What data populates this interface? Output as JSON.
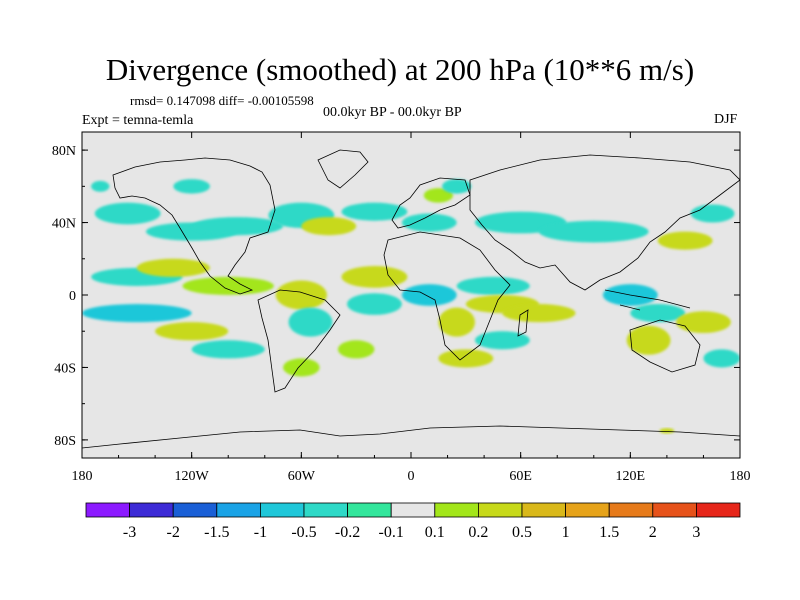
{
  "chart_data": {
    "type": "heatmap",
    "title": "Divergence (smoothed) at 200 hPa (10**6 m/s)",
    "stats_text": "rmsd= 0.147098 diff= -0.00105598",
    "period_text": "00.0kyr BP - 00.0kyr BP",
    "experiment_text": "Expt = temna-temla",
    "season_text": "DJF",
    "x_axis": {
      "range": [
        -180,
        180
      ],
      "ticks": [
        -180,
        -120,
        -60,
        0,
        60,
        120,
        180
      ],
      "tick_labels": [
        "180",
        "120W",
        "60W",
        "0",
        "60E",
        "120E",
        "180"
      ]
    },
    "y_axis": {
      "range": [
        -90,
        90
      ],
      "ticks": [
        80,
        40,
        0,
        -40,
        -80
      ],
      "tick_labels": [
        "80N",
        "40N",
        "0",
        "40S",
        "80S"
      ]
    },
    "colorbar": {
      "colors": [
        "#8c1aff",
        "#3d2bd6",
        "#1a5fd6",
        "#1aa3e6",
        "#1fc7d9",
        "#2ed9c7",
        "#33e69c",
        "#e6e6e6",
        "#a3e61a",
        "#c7d91a",
        "#d9b81a",
        "#e6a31a",
        "#e67a1a",
        "#e6521a",
        "#e6261a"
      ],
      "boundary_labels": [
        "-3",
        "-2",
        "-1.5",
        "-1",
        "-0.5",
        "-0.2",
        "-0.1",
        "0.1",
        "0.2",
        "0.5",
        "1",
        "1.5",
        "2",
        "3"
      ]
    },
    "field": [
      {
        "lon": -120,
        "lat": 60,
        "w": 10,
        "h": 4,
        "v": -0.4
      },
      {
        "lon": -170,
        "lat": 60,
        "w": 5,
        "h": 3,
        "v": -0.2
      },
      {
        "lon": -155,
        "lat": 45,
        "w": 18,
        "h": 6,
        "v": -0.3
      },
      {
        "lon": -120,
        "lat": 35,
        "w": 25,
        "h": 5,
        "v": -0.3
      },
      {
        "lon": -95,
        "lat": 38,
        "w": 25,
        "h": 5,
        "v": -0.3
      },
      {
        "lon": -60,
        "lat": 44,
        "w": 18,
        "h": 7,
        "v": -0.3
      },
      {
        "lon": -45,
        "lat": 38,
        "w": 15,
        "h": 5,
        "v": 0.5
      },
      {
        "lon": -20,
        "lat": 46,
        "w": 18,
        "h": 5,
        "v": -0.4
      },
      {
        "lon": 10,
        "lat": 40,
        "w": 15,
        "h": 5,
        "v": -0.2
      },
      {
        "lon": 15,
        "lat": 55,
        "w": 8,
        "h": 4,
        "v": 0.2
      },
      {
        "lon": 25,
        "lat": 60,
        "w": 8,
        "h": 4,
        "v": -0.2
      },
      {
        "lon": 60,
        "lat": 40,
        "w": 25,
        "h": 6,
        "v": -0.3
      },
      {
        "lon": 100,
        "lat": 35,
        "w": 30,
        "h": 6,
        "v": -0.4
      },
      {
        "lon": 150,
        "lat": 30,
        "w": 15,
        "h": 5,
        "v": 0.3
      },
      {
        "lon": 165,
        "lat": 45,
        "w": 12,
        "h": 5,
        "v": -0.2
      },
      {
        "lon": -150,
        "lat": 10,
        "w": 25,
        "h": 5,
        "v": -0.3
      },
      {
        "lon": -130,
        "lat": 15,
        "w": 20,
        "h": 5,
        "v": 0.3
      },
      {
        "lon": -100,
        "lat": 5,
        "w": 25,
        "h": 5,
        "v": 0.2
      },
      {
        "lon": -150,
        "lat": -10,
        "w": 30,
        "h": 5,
        "v": -0.5
      },
      {
        "lon": -120,
        "lat": -20,
        "w": 20,
        "h": 5,
        "v": 0.3
      },
      {
        "lon": -100,
        "lat": -30,
        "w": 20,
        "h": 5,
        "v": -0.2
      },
      {
        "lon": -60,
        "lat": 0,
        "w": 14,
        "h": 8,
        "v": 0.3
      },
      {
        "lon": -55,
        "lat": -15,
        "w": 12,
        "h": 8,
        "v": -0.3
      },
      {
        "lon": -20,
        "lat": 10,
        "w": 18,
        "h": 6,
        "v": 0.5
      },
      {
        "lon": -20,
        "lat": -5,
        "w": 15,
        "h": 6,
        "v": -0.4
      },
      {
        "lon": 10,
        "lat": 0,
        "w": 15,
        "h": 6,
        "v": -0.5
      },
      {
        "lon": 25,
        "lat": -15,
        "w": 10,
        "h": 8,
        "v": 0.3
      },
      {
        "lon": 45,
        "lat": 5,
        "w": 20,
        "h": 5,
        "v": -0.3
      },
      {
        "lon": 50,
        "lat": -5,
        "w": 20,
        "h": 5,
        "v": 0.5
      },
      {
        "lon": 70,
        "lat": -10,
        "w": 20,
        "h": 5,
        "v": 0.3
      },
      {
        "lon": 120,
        "lat": 0,
        "w": 15,
        "h": 6,
        "v": -0.5
      },
      {
        "lon": 135,
        "lat": -10,
        "w": 15,
        "h": 5,
        "v": -0.4
      },
      {
        "lon": 130,
        "lat": -25,
        "w": 12,
        "h": 8,
        "v": 0.3
      },
      {
        "lon": 160,
        "lat": -15,
        "w": 15,
        "h": 6,
        "v": 0.3
      },
      {
        "lon": 170,
        "lat": -35,
        "w": 10,
        "h": 5,
        "v": -0.2
      },
      {
        "lon": 50,
        "lat": -25,
        "w": 15,
        "h": 5,
        "v": -0.2
      },
      {
        "lon": 30,
        "lat": -35,
        "w": 15,
        "h": 5,
        "v": 0.3
      },
      {
        "lon": -30,
        "lat": -30,
        "w": 10,
        "h": 5,
        "v": 0.2
      },
      {
        "lon": -60,
        "lat": -40,
        "w": 10,
        "h": 5,
        "v": 0.2
      },
      {
        "lon": 140,
        "lat": -75,
        "w": 4,
        "h": 1.5,
        "v": 0.3
      }
    ]
  }
}
